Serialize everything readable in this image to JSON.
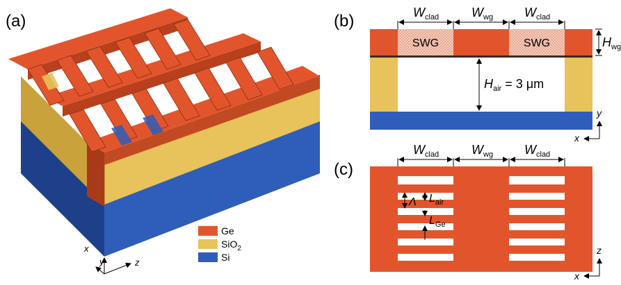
{
  "colors": {
    "ge": "#E2552C",
    "ge_dark": "#B8401C",
    "ge_light": "#EE6B3E",
    "sio2": "#E8C25A",
    "sio2_dark": "#B8962E",
    "si": "#2F5DBA",
    "si_dark": "#1E3F8A",
    "swg_fill": "#F2C7B8"
  },
  "panel_a": {
    "label": "(a)",
    "axis_x": "x",
    "axis_y": "y",
    "axis_z": "z"
  },
  "legend": [
    {
      "name": "Ge",
      "color_key": "ge"
    },
    {
      "name": "SiO",
      "sub": "2",
      "color_key": "sio2"
    },
    {
      "name": "Si",
      "color_key": "si"
    }
  ],
  "panel_b": {
    "label": "(b)",
    "w_clad_main": "W",
    "w_clad_sub": "clad",
    "w_wg_main": "W",
    "w_wg_sub": "wg",
    "swg_left": "SWG",
    "swg_right": "SWG",
    "h_wg_main": "H",
    "h_wg_sub": "wg",
    "h_air_main": "H",
    "h_air_sub": "air",
    "h_air_rest": " = 3 μm",
    "axis_x": "x",
    "axis_y": "y"
  },
  "panel_c": {
    "label": "(c)",
    "w_clad_main": "W",
    "w_clad_sub": "clad",
    "w_wg_main": "W",
    "w_wg_sub": "wg",
    "lambda": "Λ",
    "l_air_main": "L",
    "l_air_sub": "air",
    "l_ge_main": "L",
    "l_ge_sub": "Ge",
    "axis_x": "x",
    "axis_z": "z"
  }
}
